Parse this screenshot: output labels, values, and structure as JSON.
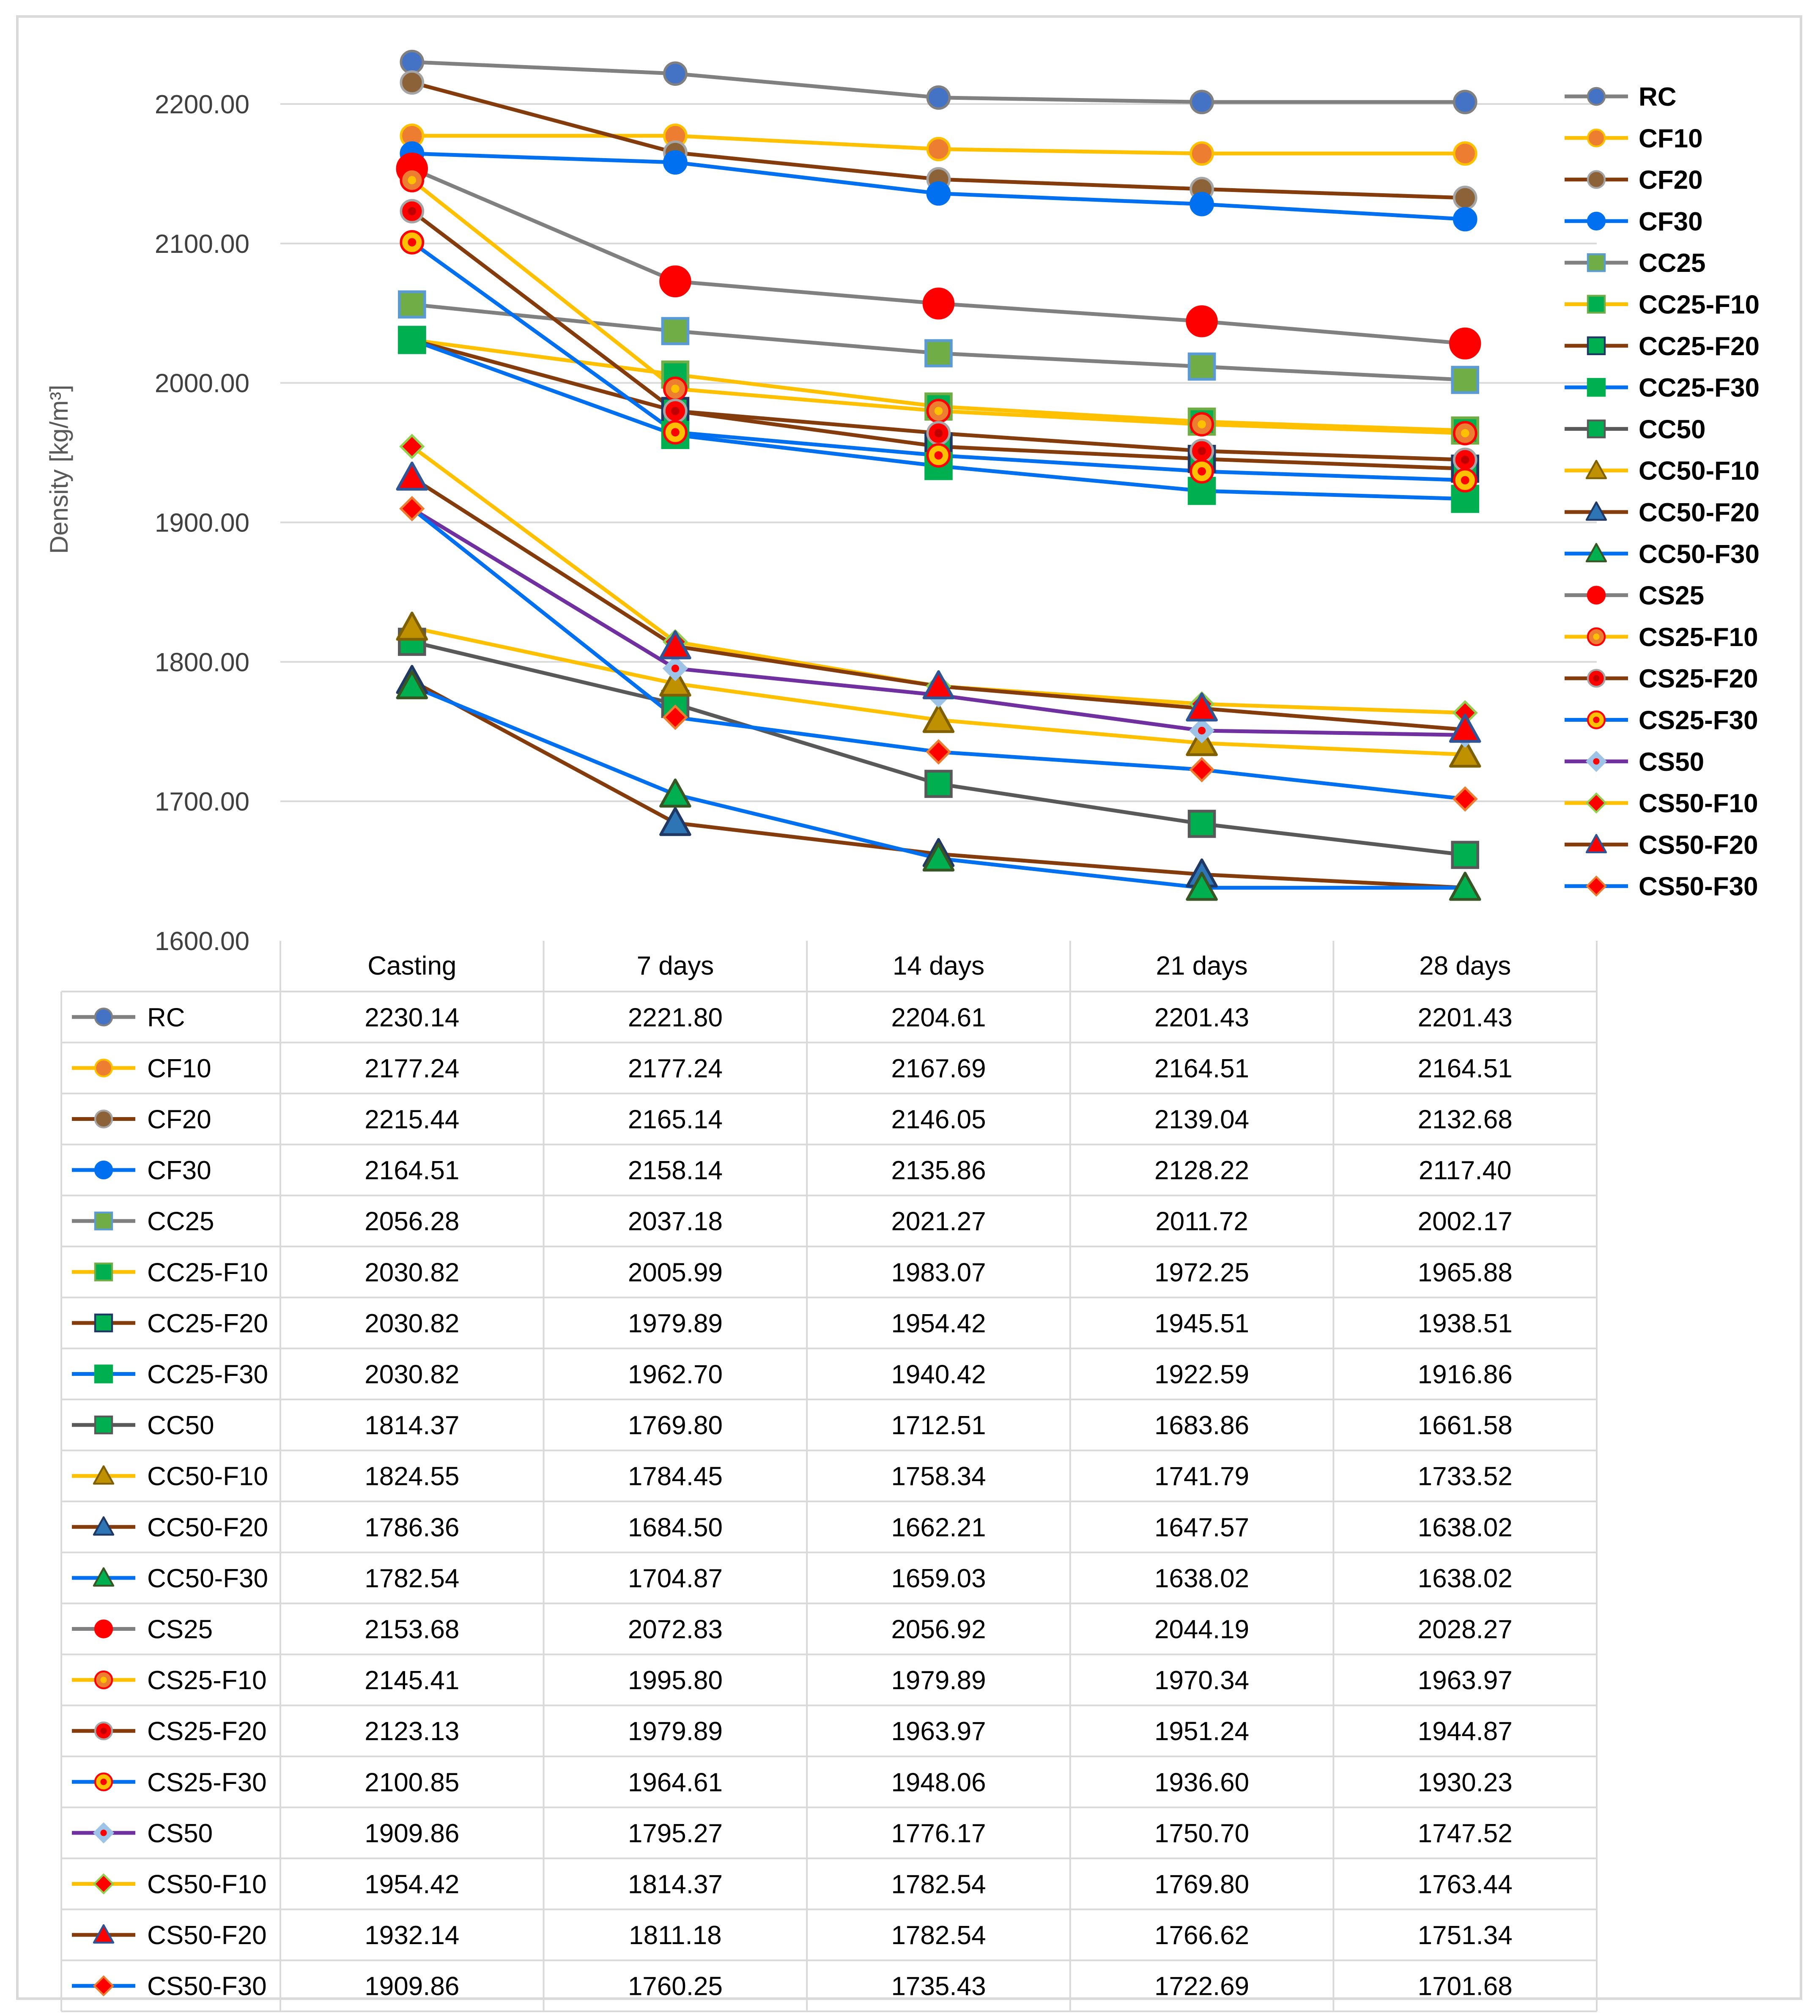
{
  "chart_data": {
    "type": "line",
    "title": "",
    "xlabel": "",
    "ylabel": "Density [kg/m³]",
    "ylim": [
      1600,
      2250
    ],
    "yticks": [
      "1600.00",
      "1700.00",
      "1800.00",
      "1900.00",
      "2000.00",
      "2100.00",
      "2200.00"
    ],
    "categories": [
      "Casting",
      "7 days",
      "14 days",
      "21 days",
      "28 days"
    ],
    "grid": true,
    "legend_position": "right",
    "series": [
      {
        "name": "RC",
        "line": "#808080",
        "marker": "circle",
        "fill": "#4472c4",
        "edge": "#808080",
        "inner": "",
        "values": [
          2230.14,
          2221.8,
          2204.61,
          2201.43,
          2201.43
        ]
      },
      {
        "name": "CF10",
        "line": "#ffc000",
        "marker": "circle",
        "fill": "#ed7d31",
        "edge": "#ffc000",
        "inner": "",
        "values": [
          2177.24,
          2177.24,
          2167.69,
          2164.51,
          2164.51
        ]
      },
      {
        "name": "CF20",
        "line": "#843c0c",
        "marker": "circle",
        "fill": "#8c6239",
        "edge": "#a5a5a5",
        "inner": "",
        "values": [
          2215.44,
          2165.14,
          2146.05,
          2139.04,
          2132.68
        ]
      },
      {
        "name": "CF30",
        "line": "#0070f0",
        "marker": "circle",
        "fill": "#0070f0",
        "edge": "#0070f0",
        "inner": "",
        "values": [
          2164.51,
          2158.14,
          2135.86,
          2128.22,
          2117.4
        ]
      },
      {
        "name": "CC25",
        "line": "#808080",
        "marker": "square",
        "fill": "#70ad47",
        "edge": "#5b9bd5",
        "inner": "",
        "values": [
          2056.28,
          2037.18,
          2021.27,
          2011.72,
          2002.17
        ]
      },
      {
        "name": "CC25-F10",
        "line": "#ffc000",
        "marker": "square",
        "fill": "#00b050",
        "edge": "#70ad47",
        "inner": "",
        "values": [
          2030.82,
          2005.99,
          1983.07,
          1972.25,
          1965.88
        ]
      },
      {
        "name": "CC25-F20",
        "line": "#843c0c",
        "marker": "square",
        "fill": "#00b050",
        "edge": "#1f3864",
        "inner": "",
        "values": [
          2030.82,
          1979.89,
          1954.42,
          1945.51,
          1938.51
        ]
      },
      {
        "name": "CC25-F30",
        "line": "#0070f0",
        "marker": "square",
        "fill": "#00b050",
        "edge": "#00b050",
        "inner": "",
        "values": [
          2030.82,
          1962.7,
          1940.42,
          1922.59,
          1916.86
        ]
      },
      {
        "name": "CC50",
        "line": "#595959",
        "marker": "square",
        "fill": "#00b050",
        "edge": "#595959",
        "inner": "",
        "values": [
          1814.37,
          1769.8,
          1712.51,
          1683.86,
          1661.58
        ]
      },
      {
        "name": "CC50-F10",
        "line": "#ffc000",
        "marker": "triangle",
        "fill": "#bf9000",
        "edge": "#7f6000",
        "inner": "",
        "values": [
          1824.55,
          1784.45,
          1758.34,
          1741.79,
          1733.52
        ]
      },
      {
        "name": "CC50-F20",
        "line": "#843c0c",
        "marker": "triangle",
        "fill": "#2e75b6",
        "edge": "#1f3864",
        "inner": "",
        "values": [
          1786.36,
          1684.5,
          1662.21,
          1647.57,
          1638.02
        ]
      },
      {
        "name": "CC50-F30",
        "line": "#0070f0",
        "marker": "triangle",
        "fill": "#00b050",
        "edge": "#375623",
        "inner": "",
        "values": [
          1782.54,
          1704.87,
          1659.03,
          1638.02,
          1638.02
        ]
      },
      {
        "name": "CS25",
        "line": "#808080",
        "marker": "circle",
        "fill": "#ff0000",
        "edge": "#ff0000",
        "inner": "",
        "values": [
          2153.68,
          2072.83,
          2056.92,
          2044.19,
          2028.27
        ]
      },
      {
        "name": "CS25-F10",
        "line": "#ffc000",
        "marker": "circle",
        "fill": "#ed7d31",
        "edge": "#ff0000",
        "inner": "#ffc000",
        "values": [
          2145.41,
          1995.8,
          1979.89,
          1970.34,
          1963.97
        ]
      },
      {
        "name": "CS25-F20",
        "line": "#843c0c",
        "marker": "circle",
        "fill": "#ff0000",
        "edge": "#a5a5a5",
        "inner": "#c00000",
        "values": [
          2123.13,
          1979.89,
          1963.97,
          1951.24,
          1944.87
        ]
      },
      {
        "name": "CS25-F30",
        "line": "#0070f0",
        "marker": "circle",
        "fill": "#ffc000",
        "edge": "#ff0000",
        "inner": "#ff0000",
        "values": [
          2100.85,
          1964.61,
          1948.06,
          1936.6,
          1930.23
        ]
      },
      {
        "name": "CS50",
        "line": "#7030a0",
        "marker": "diamond",
        "fill": "#9dc3e6",
        "edge": "#9dc3e6",
        "inner": "#ff0000",
        "values": [
          1909.86,
          1795.27,
          1776.17,
          1750.7,
          1747.52
        ]
      },
      {
        "name": "CS50-F10",
        "line": "#ffc000",
        "marker": "diamond",
        "fill": "#ff0000",
        "edge": "#92d050",
        "inner": "",
        "values": [
          1954.42,
          1814.37,
          1782.54,
          1769.8,
          1763.44
        ]
      },
      {
        "name": "CS50-F20",
        "line": "#843c0c",
        "marker": "triangle",
        "fill": "#ff0000",
        "edge": "#2f5597",
        "inner": "",
        "values": [
          1932.14,
          1811.18,
          1782.54,
          1766.62,
          1751.34
        ]
      },
      {
        "name": "CS50-F30",
        "line": "#0070f0",
        "marker": "diamond",
        "fill": "#ff0000",
        "edge": "#ed7d31",
        "inner": "",
        "values": [
          1909.86,
          1760.25,
          1735.43,
          1722.69,
          1701.68
        ]
      }
    ]
  }
}
